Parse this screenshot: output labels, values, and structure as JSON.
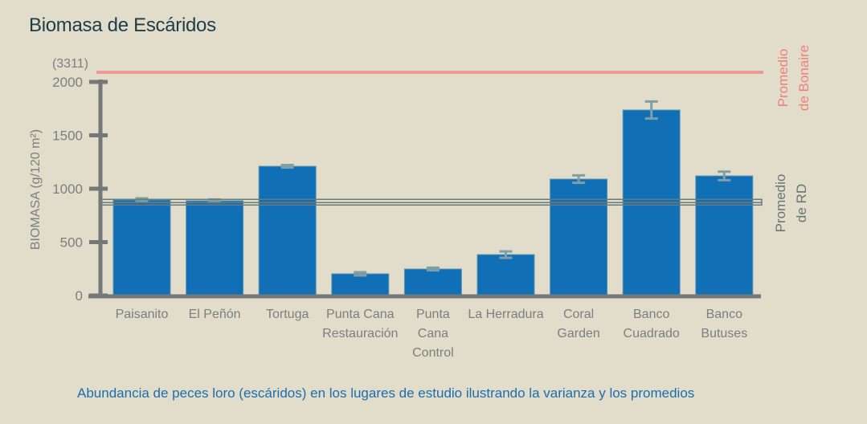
{
  "chart_data": {
    "type": "bar",
    "title": "Biomasa de Escáridos",
    "caption": "Abundancia de peces loro (escáridos) en los lugares de estudio ilustrando la varianza y los promedios",
    "ylabel": "BIOMASA (g/120 m²)",
    "ylim": [
      0,
      2000
    ],
    "yticks": [
      0,
      500,
      1000,
      1500,
      2000
    ],
    "grid": false,
    "categories": [
      [
        "Paisanito"
      ],
      [
        "El Peñón"
      ],
      [
        "Tortuga"
      ],
      [
        "Punta Cana",
        "Restauración"
      ],
      [
        "Punta",
        "Cana",
        "Control"
      ],
      [
        "La Herradura"
      ],
      [
        "Coral",
        "Garden"
      ],
      [
        "Banco",
        "Cuadrado"
      ],
      [
        "Banco",
        "Butuses"
      ]
    ],
    "values": [
      895,
      887,
      1210,
      203,
      248,
      383,
      1090,
      1737,
      1120
    ],
    "errors": [
      15,
      12,
      12,
      15,
      12,
      30,
      35,
      80,
      40
    ],
    "reference_lines": [
      {
        "label": [
          "Promedio",
          "de Bonaire"
        ],
        "value": 3311,
        "value_label": "(3311)",
        "color": "#ec9a94",
        "label_color": "#f07f7b"
      },
      {
        "label": [
          "Promedio",
          "de RD"
        ],
        "value": 870,
        "color": "#6b7a7a",
        "label_color": "#6b7373"
      }
    ],
    "colors": {
      "bar": "#116fb5",
      "error": "#7f9ea5",
      "axis": "#747878",
      "tick_label": "#7a7f80",
      "background": "#e1ddca"
    }
  }
}
